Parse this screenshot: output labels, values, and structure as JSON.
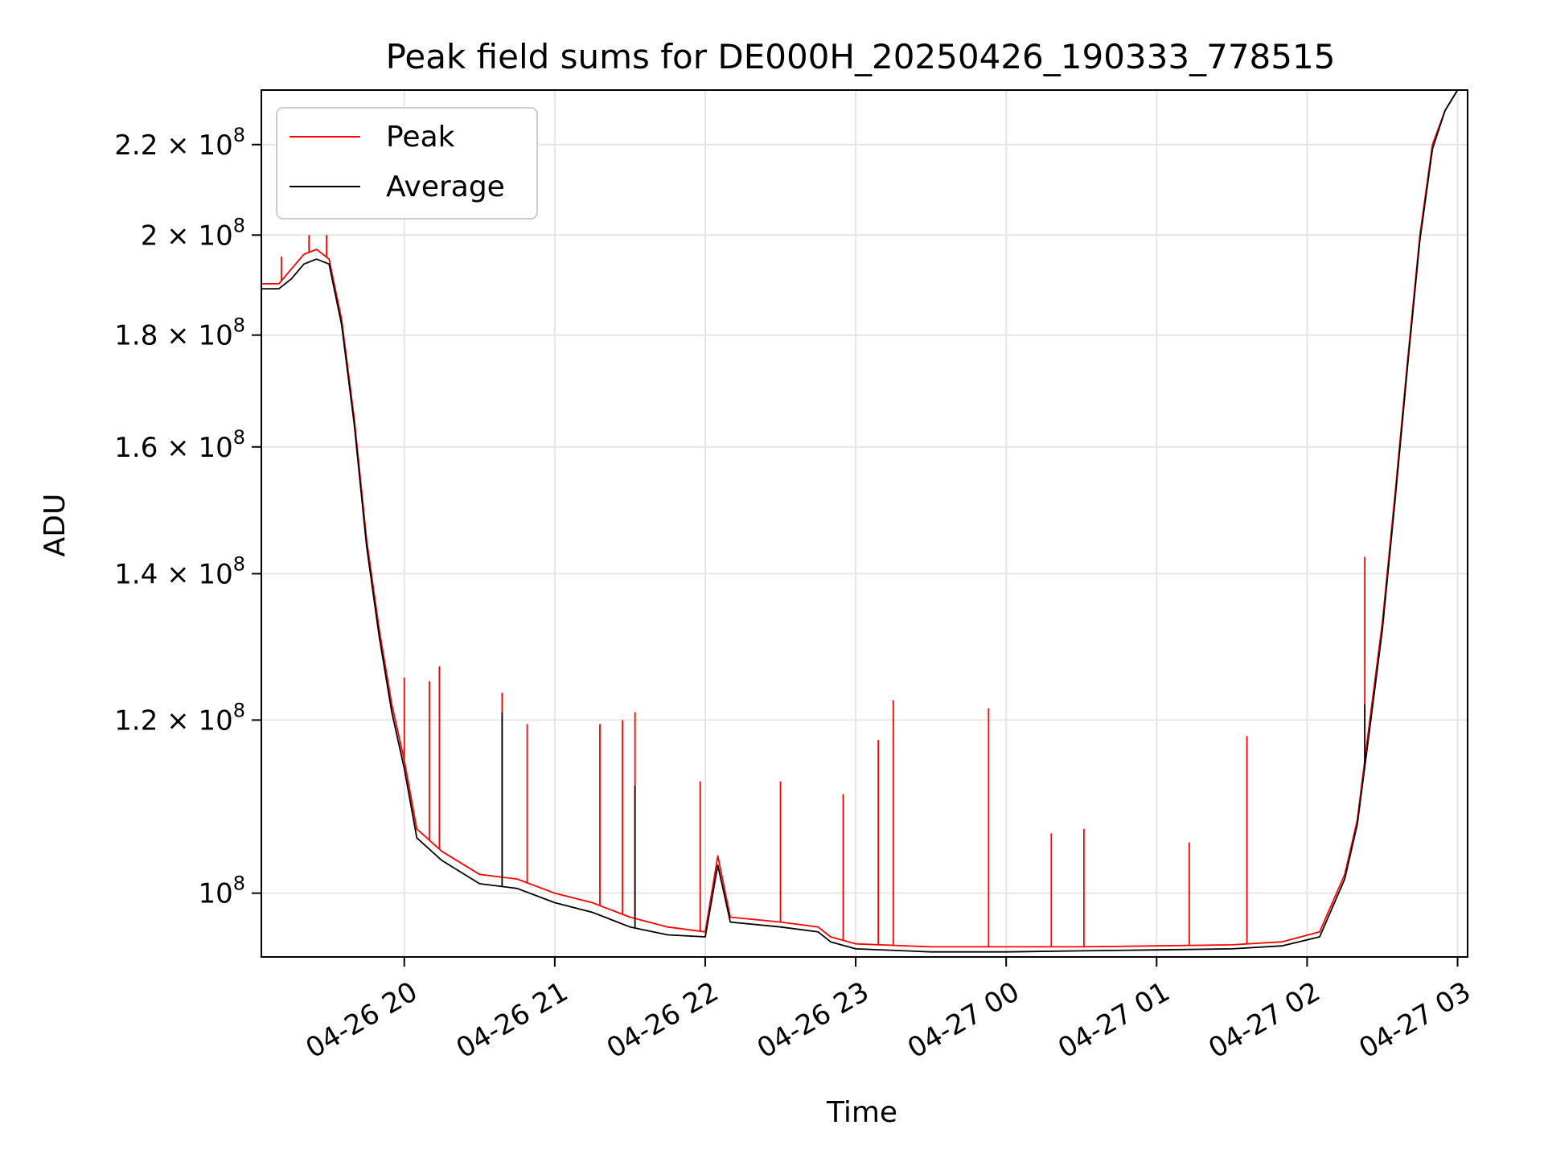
{
  "chart_data": {
    "type": "line",
    "title": "Peak field sums for DE000H_20250426_190333_778515",
    "xlabel": "Time",
    "ylabel": "ADU",
    "xlim": [
      "2025-04-26 19:03",
      "2025-04-27 03:04"
    ],
    "ylim": [
      93500000.0,
      233000000.0
    ],
    "yscale": "log",
    "grid": true,
    "legend_position": "top-left",
    "x_ticks": [
      {
        "t": "2025-04-26 20:00",
        "label": "04-26 20"
      },
      {
        "t": "2025-04-26 21:00",
        "label": "04-26 21"
      },
      {
        "t": "2025-04-26 22:00",
        "label": "04-26 22"
      },
      {
        "t": "2025-04-26 23:00",
        "label": "04-26 23"
      },
      {
        "t": "2025-04-27 00:00",
        "label": "04-27 00"
      },
      {
        "t": "2025-04-27 01:00",
        "label": "04-27 01"
      },
      {
        "t": "2025-04-27 02:00",
        "label": "04-27 02"
      },
      {
        "t": "2025-04-27 03:00",
        "label": "04-27 03"
      }
    ],
    "y_ticks": [
      {
        "value": 100000000.0,
        "mantissa": "",
        "exponent": "8"
      },
      {
        "value": 120000000.0,
        "mantissa": "1.2",
        "exponent": "8"
      },
      {
        "value": 140000000.0,
        "mantissa": "1.4",
        "exponent": "8"
      },
      {
        "value": 160000000.0,
        "mantissa": "1.6",
        "exponent": "8"
      },
      {
        "value": 180000000.0,
        "mantissa": "1.8",
        "exponent": "8"
      },
      {
        "value": 200000000.0,
        "mantissa": "2",
        "exponent": "8"
      },
      {
        "value": 220000000.0,
        "mantissa": "2.2",
        "exponent": "8"
      }
    ],
    "series": [
      {
        "name": "Peak",
        "color": "#ff0000",
        "points": [
          [
            "2025-04-26 19:03",
            190000000.0
          ],
          [
            "2025-04-26 19:10",
            190000000.0
          ],
          [
            "2025-04-26 19:15",
            193000000.0
          ],
          [
            "2025-04-26 19:20",
            196000000.0
          ],
          [
            "2025-04-26 19:25",
            197000000.0
          ],
          [
            "2025-04-26 19:30",
            195000000.0
          ],
          [
            "2025-04-26 19:35",
            183000000.0
          ],
          [
            "2025-04-26 19:40",
            165000000.0
          ],
          [
            "2025-04-26 19:45",
            145000000.0
          ],
          [
            "2025-04-26 19:50",
            132000000.0
          ],
          [
            "2025-04-26 19:55",
            122000000.0
          ],
          [
            "2025-04-26 20:00",
            115000000.0
          ],
          [
            "2025-04-26 20:05",
            107000000.0
          ],
          [
            "2025-04-26 20:15",
            104500000.0
          ],
          [
            "2025-04-26 20:30",
            102000000.0
          ],
          [
            "2025-04-26 20:45",
            101500000.0
          ],
          [
            "2025-04-26 21:00",
            100000000.0
          ],
          [
            "2025-04-26 21:15",
            99000000.0
          ],
          [
            "2025-04-26 21:30",
            97500000.0
          ],
          [
            "2025-04-26 21:45",
            96500000.0
          ],
          [
            "2025-04-26 22:00",
            96000000.0
          ],
          [
            "2025-04-26 22:05",
            104000000.0
          ],
          [
            "2025-04-26 22:10",
            97500000.0
          ],
          [
            "2025-04-26 22:30",
            97000000.0
          ],
          [
            "2025-04-26 22:45",
            96500000.0
          ],
          [
            "2025-04-26 22:50",
            95500000.0
          ],
          [
            "2025-04-26 23:00",
            94800000.0
          ],
          [
            "2025-04-26 23:30",
            94500000.0
          ],
          [
            "2025-04-27 00:00",
            94500000.0
          ],
          [
            "2025-04-27 00:30",
            94500000.0
          ],
          [
            "2025-04-27 01:00",
            94600000.0
          ],
          [
            "2025-04-27 01:30",
            94700000.0
          ],
          [
            "2025-04-27 01:50",
            95000000.0
          ],
          [
            "2025-04-27 02:05",
            96000000.0
          ],
          [
            "2025-04-27 02:15",
            102000000.0
          ],
          [
            "2025-04-27 02:20",
            108000000.0
          ],
          [
            "2025-04-27 02:25",
            120000000.0
          ],
          [
            "2025-04-27 02:30",
            133000000.0
          ],
          [
            "2025-04-27 02:35",
            152000000.0
          ],
          [
            "2025-04-27 02:40",
            175000000.0
          ],
          [
            "2025-04-27 02:45",
            200000000.0
          ],
          [
            "2025-04-27 02:50",
            220000000.0
          ],
          [
            "2025-04-27 02:55",
            228000000.0
          ],
          [
            "2025-04-27 03:00",
            233000000.0
          ]
        ],
        "spikes": [
          [
            "2025-04-26 19:11",
            195500000.0
          ],
          [
            "2025-04-26 19:22",
            200000000.0
          ],
          [
            "2025-04-26 19:29",
            200000000.0
          ],
          [
            "2025-04-26 20:00",
            125500000.0
          ],
          [
            "2025-04-26 20:10",
            125000000.0
          ],
          [
            "2025-04-26 20:14",
            127000000.0
          ],
          [
            "2025-04-26 20:39",
            123500000.0
          ],
          [
            "2025-04-26 20:49",
            119500000.0
          ],
          [
            "2025-04-26 21:18",
            119500000.0
          ],
          [
            "2025-04-26 21:27",
            120000000.0
          ],
          [
            "2025-04-26 21:32",
            121000000.0
          ],
          [
            "2025-04-26 21:58",
            112500000.0
          ],
          [
            "2025-04-26 22:30",
            112500000.0
          ],
          [
            "2025-04-26 22:55",
            111000000.0
          ],
          [
            "2025-04-26 23:09",
            117500000.0
          ],
          [
            "2025-04-26 23:15",
            122500000.0
          ],
          [
            "2025-04-26 23:53",
            121500000.0
          ],
          [
            "2025-04-27 00:18",
            106500000.0
          ],
          [
            "2025-04-27 00:31",
            107000000.0
          ],
          [
            "2025-04-27 01:13",
            105500000.0
          ],
          [
            "2025-04-27 01:36",
            118000000.0
          ],
          [
            "2025-04-27 02:23",
            142500000.0
          ]
        ]
      },
      {
        "name": "Average",
        "color": "#000000",
        "points": [
          [
            "2025-04-26 19:03",
            189000000.0
          ],
          [
            "2025-04-26 19:10",
            189000000.0
          ],
          [
            "2025-04-26 19:15",
            191000000.0
          ],
          [
            "2025-04-26 19:20",
            194000000.0
          ],
          [
            "2025-04-26 19:25",
            195000000.0
          ],
          [
            "2025-04-26 19:30",
            194000000.0
          ],
          [
            "2025-04-26 19:35",
            182000000.0
          ],
          [
            "2025-04-26 19:40",
            164000000.0
          ],
          [
            "2025-04-26 19:45",
            144000000.0
          ],
          [
            "2025-04-26 19:50",
            131000000.0
          ],
          [
            "2025-04-26 19:55",
            121000000.0
          ],
          [
            "2025-04-26 20:00",
            114000000.0
          ],
          [
            "2025-04-26 20:05",
            106000000.0
          ],
          [
            "2025-04-26 20:15",
            103500000.0
          ],
          [
            "2025-04-26 20:30",
            101000000.0
          ],
          [
            "2025-04-26 20:45",
            100500000.0
          ],
          [
            "2025-04-26 21:00",
            99000000.0
          ],
          [
            "2025-04-26 21:15",
            98000000.0
          ],
          [
            "2025-04-26 21:30",
            96500000.0
          ],
          [
            "2025-04-26 21:45",
            95700000.0
          ],
          [
            "2025-04-26 22:00",
            95500000.0
          ],
          [
            "2025-04-26 22:05",
            103000000.0
          ],
          [
            "2025-04-26 22:10",
            97000000.0
          ],
          [
            "2025-04-26 22:30",
            96500000.0
          ],
          [
            "2025-04-26 22:45",
            96000000.0
          ],
          [
            "2025-04-26 22:50",
            95000000.0
          ],
          [
            "2025-04-26 23:00",
            94300000.0
          ],
          [
            "2025-04-26 23:30",
            94000000.0
          ],
          [
            "2025-04-27 00:00",
            94000000.0
          ],
          [
            "2025-04-27 00:30",
            94100000.0
          ],
          [
            "2025-04-27 01:00",
            94200000.0
          ],
          [
            "2025-04-27 01:30",
            94300000.0
          ],
          [
            "2025-04-27 01:50",
            94600000.0
          ],
          [
            "2025-04-27 02:05",
            95500000.0
          ],
          [
            "2025-04-27 02:15",
            101500000.0
          ],
          [
            "2025-04-27 02:20",
            107500000.0
          ],
          [
            "2025-04-27 02:25",
            119000000.0
          ],
          [
            "2025-04-27 02:30",
            132000000.0
          ],
          [
            "2025-04-27 02:35",
            151000000.0
          ],
          [
            "2025-04-27 02:40",
            174000000.0
          ],
          [
            "2025-04-27 02:45",
            199000000.0
          ],
          [
            "2025-04-27 02:50",
            219000000.0
          ],
          [
            "2025-04-27 02:55",
            228000000.0
          ],
          [
            "2025-04-27 03:00",
            233000000.0
          ]
        ],
        "spikes": [
          [
            "2025-04-26 20:39",
            121000000.0
          ],
          [
            "2025-04-26 21:32",
            112000000.0
          ],
          [
            "2025-04-27 02:23",
            122000000.0
          ]
        ]
      }
    ]
  }
}
